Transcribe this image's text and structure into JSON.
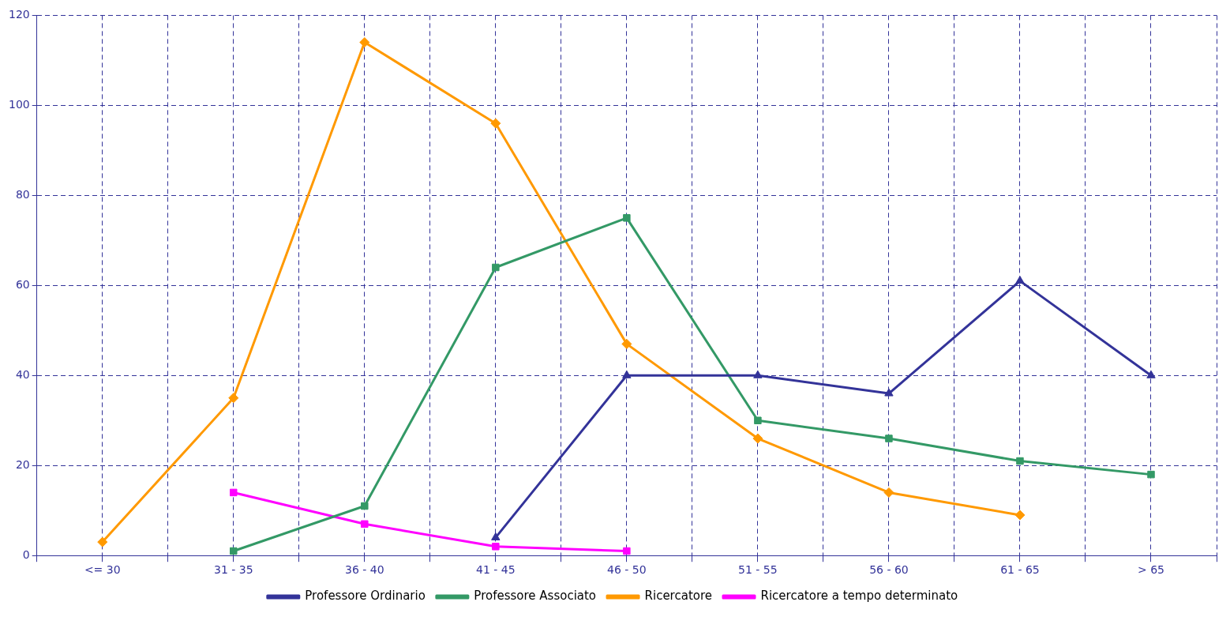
{
  "chart_data": {
    "type": "line",
    "categories": [
      "<= 30",
      "31 - 35",
      "36 - 40",
      "41 - 45",
      "46 - 50",
      "51 - 55",
      "56 - 60",
      "61 - 65",
      "> 65"
    ],
    "series": [
      {
        "name": "Professore Ordinario",
        "color": "#333399",
        "marker": "triangle",
        "values": [
          null,
          null,
          null,
          4,
          40,
          40,
          36,
          61,
          40
        ]
      },
      {
        "name": "Professore Associato",
        "color": "#339966",
        "marker": "square",
        "values": [
          null,
          1,
          11,
          64,
          75,
          30,
          26,
          21,
          18
        ]
      },
      {
        "name": "Ricercatore",
        "color": "#ff9900",
        "marker": "diamond",
        "values": [
          3,
          35,
          114,
          96,
          47,
          26,
          14,
          9,
          null
        ]
      },
      {
        "name": "Ricercatore a tempo determinato",
        "color": "#ff00ff",
        "marker": "square",
        "values": [
          null,
          14,
          7,
          2,
          1,
          null,
          null,
          null,
          null
        ]
      }
    ],
    "ylim": [
      0,
      120
    ],
    "yticks": [
      0,
      20,
      40,
      60,
      80,
      100,
      120
    ],
    "grid": true,
    "legend": "bottom",
    "line_style": "solid"
  }
}
